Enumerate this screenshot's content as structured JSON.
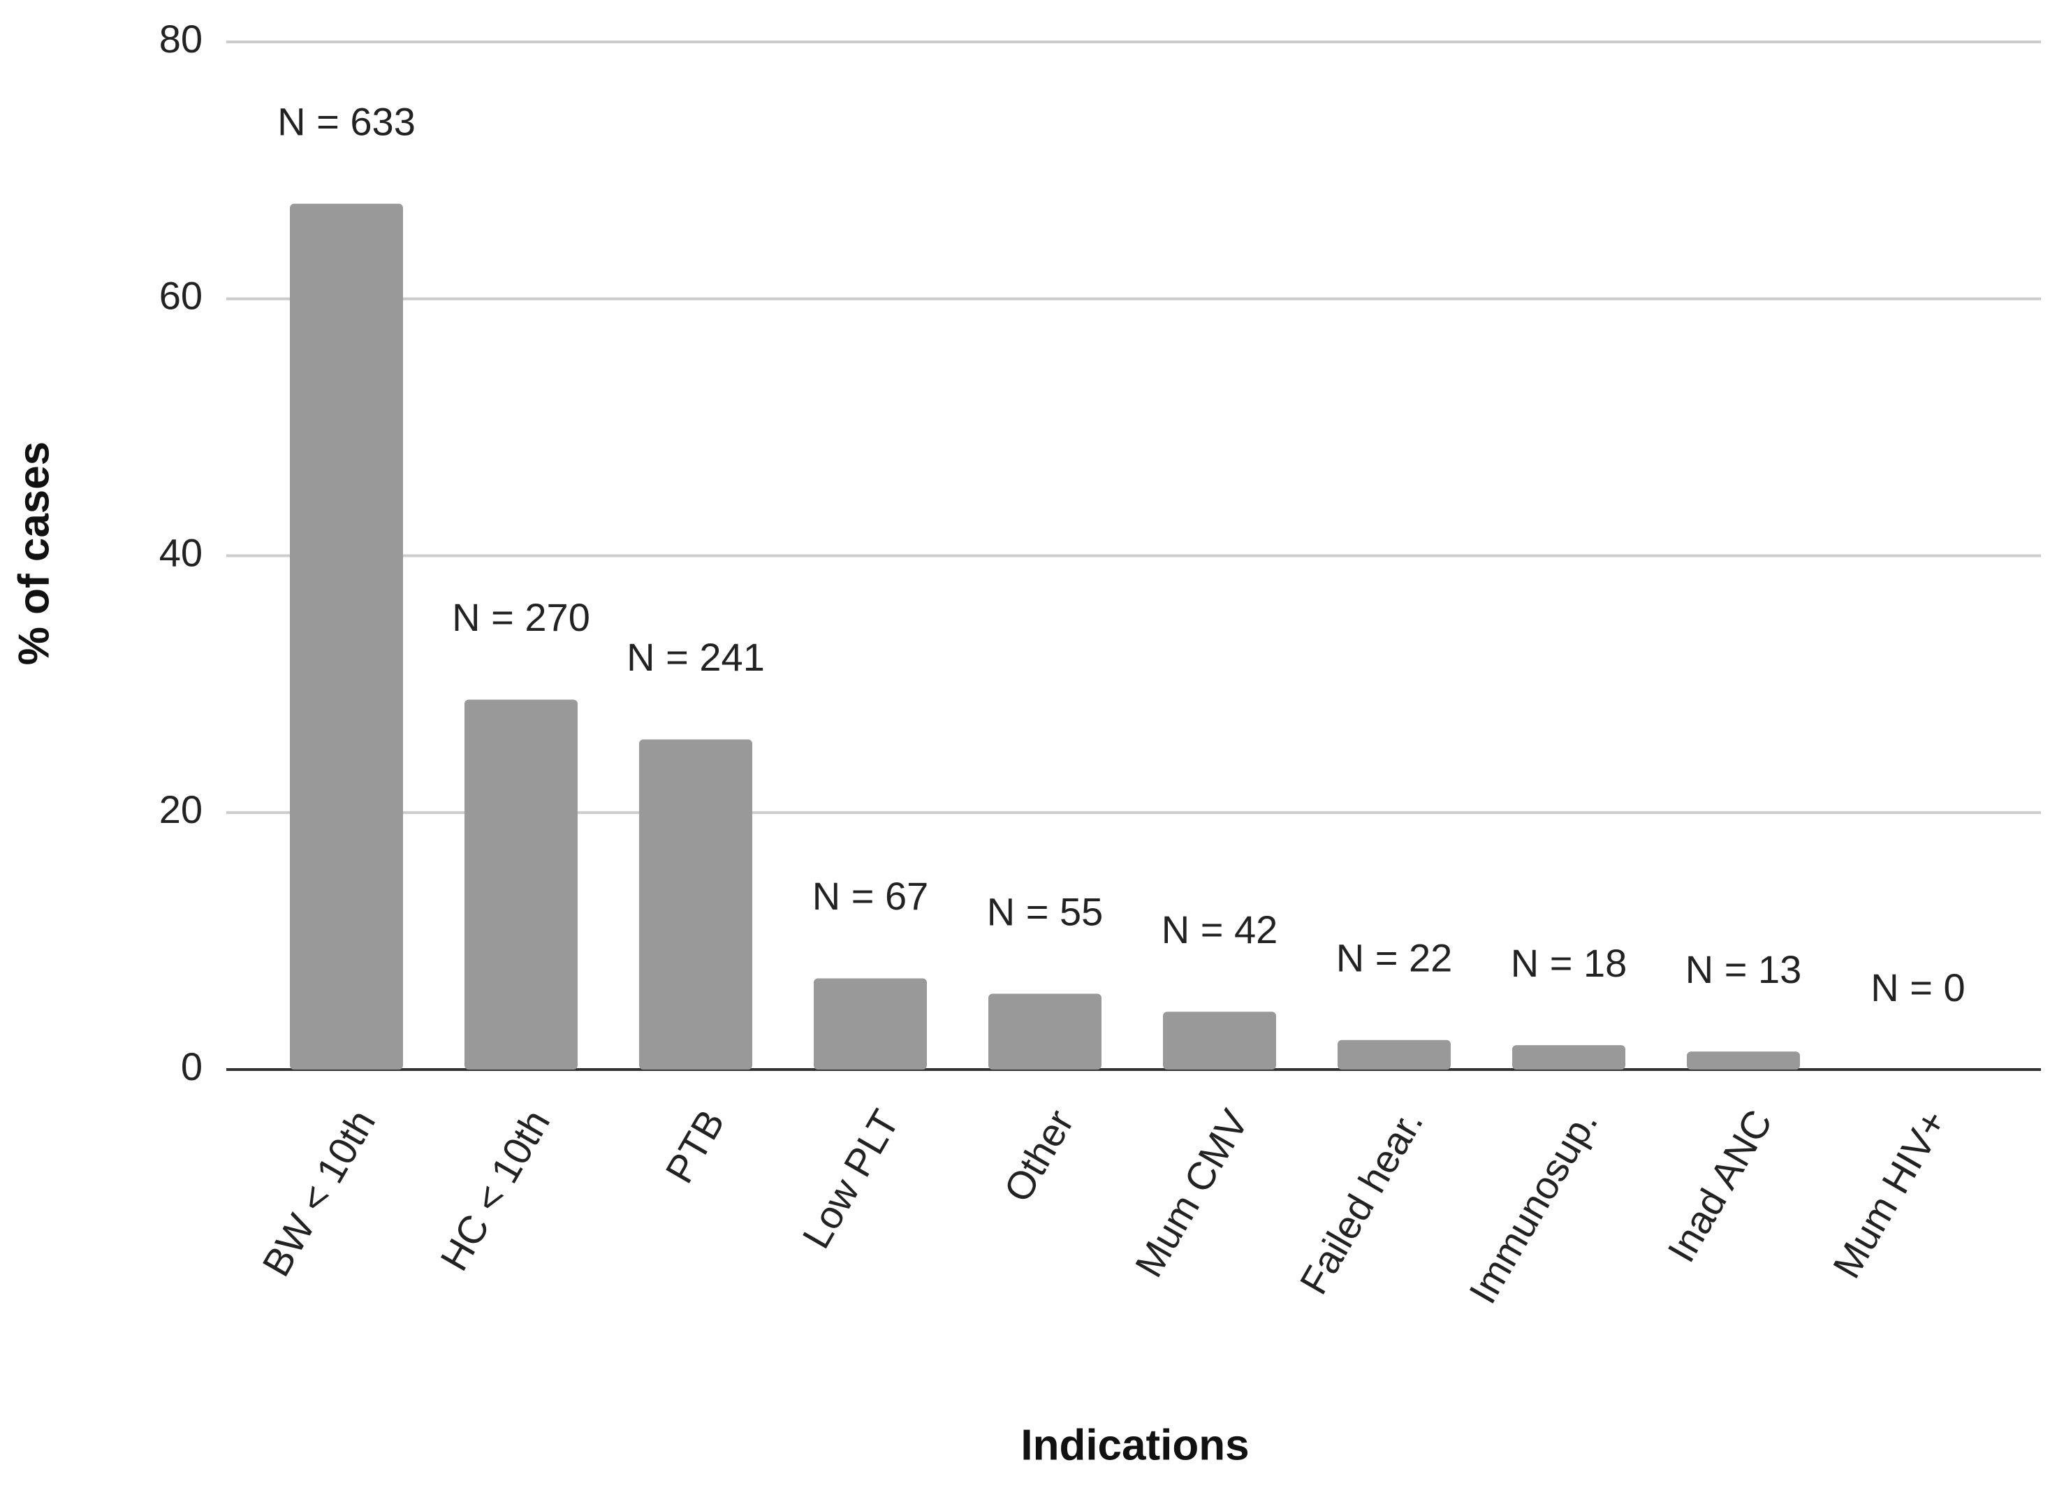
{
  "chart_data": {
    "type": "bar",
    "x_label": "Indications",
    "y_label": "% of cases",
    "categories": [
      "BW < 10th",
      "HC < 10th",
      "PTB",
      "Low PLT",
      "Other",
      "Mum CMV",
      "Failed hear.",
      "Immunosup.",
      "Inad ANC",
      "Mum HIV+"
    ],
    "values": [
      67.4,
      28.8,
      25.7,
      7.1,
      5.9,
      4.5,
      2.3,
      1.9,
      1.4,
      0
    ],
    "annotations": [
      "N = 633",
      "N = 270",
      "N = 241",
      "N = 67",
      "N = 55",
      "N = 42",
      "N = 22",
      "N = 18",
      "N = 13",
      "N = 0"
    ],
    "color": "#999999",
    "ylim": [
      0,
      80
    ],
    "yticks": [
      0,
      20,
      40,
      60,
      80
    ],
    "grid": true
  }
}
